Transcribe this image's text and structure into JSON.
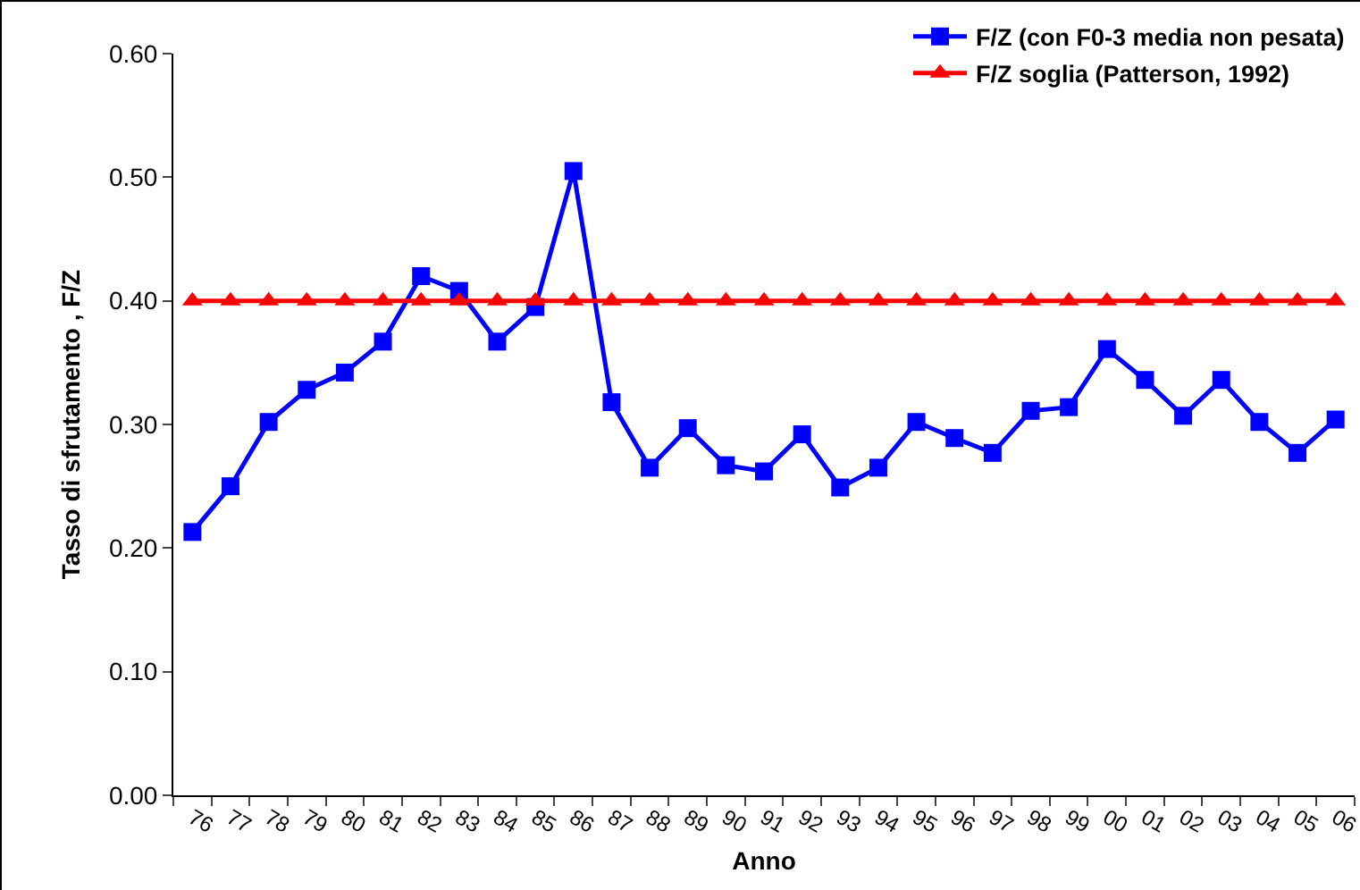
{
  "chart_data": {
    "type": "line",
    "xlabel": "Anno",
    "ylabel": "Tasso di sfrutamento , F/Z",
    "categories": [
      "76",
      "77",
      "78",
      "79",
      "80",
      "81",
      "82",
      "83",
      "84",
      "85",
      "86",
      "87",
      "88",
      "89",
      "90",
      "91",
      "92",
      "93",
      "94",
      "95",
      "96",
      "97",
      "98",
      "99",
      "00",
      "01",
      "02",
      "03",
      "04",
      "05",
      "06"
    ],
    "series": [
      {
        "name": "F/Z (con F0-3 media non pesata)",
        "color": "#0000ff",
        "marker": "square",
        "values": [
          0.213,
          0.25,
          0.302,
          0.328,
          0.342,
          0.367,
          0.42,
          0.408,
          0.367,
          0.395,
          0.505,
          0.318,
          0.265,
          0.297,
          0.267,
          0.262,
          0.292,
          0.249,
          0.265,
          0.302,
          0.289,
          0.277,
          0.311,
          0.314,
          0.361,
          0.336,
          0.307,
          0.336,
          0.302,
          0.277,
          0.304
        ]
      },
      {
        "name": "F/Z soglia (Patterson, 1992)",
        "color": "#ff0000",
        "marker": "triangle",
        "values": [
          0.4,
          0.4,
          0.4,
          0.4,
          0.4,
          0.4,
          0.4,
          0.4,
          0.4,
          0.4,
          0.4,
          0.4,
          0.4,
          0.4,
          0.4,
          0.4,
          0.4,
          0.4,
          0.4,
          0.4,
          0.4,
          0.4,
          0.4,
          0.4,
          0.4,
          0.4,
          0.4,
          0.4,
          0.4,
          0.4,
          0.4
        ]
      }
    ],
    "ylim": [
      0,
      0.6
    ],
    "yticks": [
      {
        "value": 0,
        "label": "0.00"
      },
      {
        "value": 0.1,
        "label": "0.10"
      },
      {
        "value": 0.2,
        "label": "0.20"
      },
      {
        "value": 0.3,
        "label": "0.30"
      },
      {
        "value": 0.4,
        "label": "0.40"
      },
      {
        "value": 0.5,
        "label": "0.50"
      },
      {
        "value": 0.6,
        "label": "0.60"
      }
    ],
    "grid": false,
    "legend": "top right"
  }
}
